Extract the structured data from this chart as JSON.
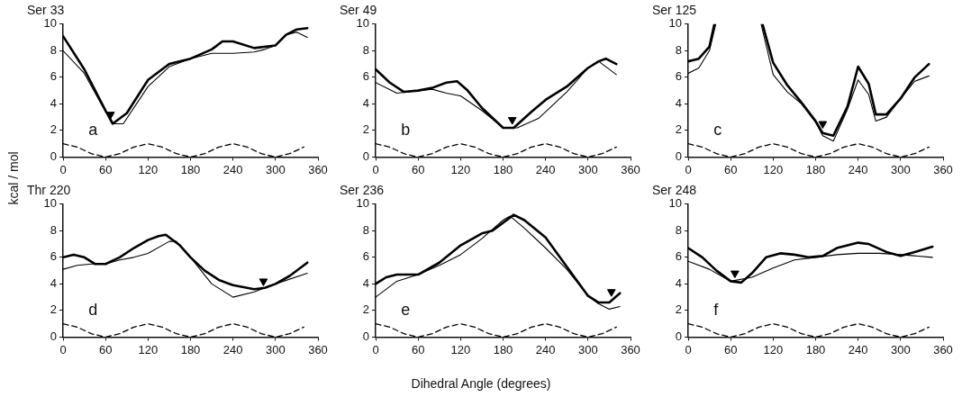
{
  "chart_data": [
    {
      "type": "line",
      "title": "Ser 33",
      "ylabel": "kcal / mol",
      "annotations": [
        "a"
      ],
      "xlim": [
        0,
        360
      ],
      "xticks": [
        0,
        60,
        120,
        180,
        240,
        300,
        360
      ],
      "ylim": [
        0,
        10
      ],
      "yticks": [
        0,
        2,
        4,
        6,
        8,
        10
      ],
      "grid": false,
      "legend": false,
      "marker": "none",
      "series": [
        {
          "color": "#000000",
          "x": [
            0,
            30,
            60,
            70,
            90,
            120,
            150,
            180,
            210,
            225,
            240,
            270,
            300,
            315,
            330,
            345
          ],
          "values": [
            9.1,
            6.6,
            3.5,
            2.5,
            3.3,
            5.8,
            7.0,
            7.4,
            8.1,
            8.7,
            8.7,
            8.2,
            8.4,
            9.2,
            9.6,
            9.7
          ]
        },
        {
          "color": "#000000",
          "x": [
            0,
            30,
            60,
            72,
            85,
            120,
            150,
            180,
            210,
            240,
            270,
            285,
            300,
            315,
            330,
            345
          ],
          "values": [
            8.0,
            6.3,
            3.4,
            2.5,
            2.5,
            5.3,
            6.8,
            7.4,
            7.8,
            7.8,
            7.9,
            8.1,
            8.4,
            9.2,
            9.4,
            9.0
          ]
        },
        {
          "color": "#000000",
          "line_style": "dashed",
          "x": [
            0,
            20,
            40,
            60,
            80,
            100,
            120,
            140,
            160,
            180,
            200,
            220,
            240,
            260,
            280,
            300,
            320,
            340
          ],
          "values": [
            1,
            0.75,
            0.25,
            0,
            0.25,
            0.75,
            1,
            0.75,
            0.25,
            0,
            0.25,
            0.75,
            1,
            0.75,
            0.25,
            0,
            0.25,
            0.75
          ]
        },
        {
          "type": "scatter",
          "marker": "triangle",
          "color": "#000000",
          "x": [
            67
          ],
          "values": [
            3.2
          ]
        }
      ]
    },
    {
      "type": "line",
      "title": "Ser 49",
      "annotations": [
        "b"
      ],
      "xlim": [
        0,
        360
      ],
      "xticks": [
        0,
        60,
        120,
        180,
        240,
        300,
        360
      ],
      "ylim": [
        0,
        10
      ],
      "yticks": [
        0,
        2,
        4,
        6,
        8,
        10
      ],
      "grid": false,
      "legend": false,
      "marker": "none",
      "series": [
        {
          "color": "#000000",
          "x": [
            0,
            20,
            40,
            60,
            80,
            100,
            115,
            130,
            150,
            180,
            195,
            220,
            240,
            270,
            300,
            315,
            325,
            340
          ],
          "values": [
            6.6,
            5.6,
            4.9,
            5.0,
            5.2,
            5.6,
            5.7,
            5.0,
            3.7,
            2.2,
            2.2,
            3.4,
            4.3,
            5.3,
            6.7,
            7.2,
            7.4,
            7.0
          ]
        },
        {
          "color": "#000000",
          "x": [
            0,
            30,
            60,
            80,
            100,
            120,
            150,
            180,
            200,
            230,
            270,
            300,
            315,
            340
          ],
          "values": [
            5.6,
            4.8,
            5.0,
            5.1,
            4.8,
            4.6,
            3.5,
            2.2,
            2.2,
            2.9,
            4.9,
            6.7,
            7.2,
            6.2
          ]
        },
        {
          "color": "#000000",
          "line_style": "dashed",
          "x": [
            0,
            20,
            40,
            60,
            80,
            100,
            120,
            140,
            160,
            180,
            200,
            220,
            240,
            260,
            280,
            300,
            320,
            340
          ],
          "values": [
            1,
            0.75,
            0.25,
            0,
            0.25,
            0.75,
            1,
            0.75,
            0.25,
            0,
            0.25,
            0.75,
            1,
            0.75,
            0.25,
            0,
            0.25,
            0.75
          ]
        },
        {
          "type": "scatter",
          "marker": "triangle",
          "color": "#000000",
          "x": [
            193
          ],
          "values": [
            2.8
          ]
        }
      ]
    },
    {
      "type": "line",
      "title": "Ser 125",
      "annotations": [
        "c"
      ],
      "xlim": [
        0,
        360
      ],
      "xticks": [
        0,
        60,
        120,
        180,
        240,
        300,
        360
      ],
      "ylim": [
        0,
        10
      ],
      "yticks": [
        0,
        2,
        4,
        6,
        8,
        10
      ],
      "grid": false,
      "legend": false,
      "marker": "none",
      "series": [
        {
          "color": "#000000",
          "x": [
            0,
            15,
            30,
            37,
            70,
            105,
            120,
            140,
            160,
            180,
            190,
            205,
            225,
            240,
            255,
            265,
            280,
            300,
            320,
            340
          ],
          "values": [
            7.2,
            7.4,
            8.3,
            10,
            null,
            10,
            7.1,
            5.4,
            4.1,
            2.7,
            1.8,
            1.6,
            3.8,
            6.8,
            5.5,
            3.2,
            3.2,
            4.4,
            6.0,
            7.0
          ]
        },
        {
          "color": "#000000",
          "x": [
            0,
            15,
            30,
            39,
            70,
            103,
            120,
            140,
            160,
            180,
            190,
            205,
            225,
            240,
            255,
            265,
            280,
            300,
            320,
            340
          ],
          "values": [
            6.3,
            6.7,
            8.0,
            10,
            null,
            10,
            6.2,
            4.9,
            4.0,
            2.6,
            1.6,
            1.2,
            3.6,
            5.8,
            4.7,
            2.7,
            3.0,
            4.4,
            5.7,
            6.1
          ]
        },
        {
          "color": "#000000",
          "line_style": "dashed",
          "x": [
            0,
            20,
            40,
            60,
            80,
            100,
            120,
            140,
            160,
            180,
            200,
            220,
            240,
            260,
            280,
            300,
            320,
            340
          ],
          "values": [
            1,
            0.75,
            0.25,
            0,
            0.25,
            0.75,
            1,
            0.75,
            0.25,
            0,
            0.25,
            0.75,
            1,
            0.75,
            0.25,
            0,
            0.25,
            0.75
          ]
        },
        {
          "type": "scatter",
          "marker": "triangle",
          "color": "#000000",
          "x": [
            190
          ],
          "values": [
            2.5
          ]
        }
      ]
    },
    {
      "type": "line",
      "title": "Thr 220",
      "annotations": [
        "d"
      ],
      "xlim": [
        0,
        360
      ],
      "xticks": [
        0,
        60,
        120,
        180,
        240,
        300,
        360
      ],
      "ylim": [
        0,
        10
      ],
      "yticks": [
        0,
        2,
        4,
        6,
        8,
        10
      ],
      "grid": false,
      "legend": false,
      "marker": "none",
      "series": [
        {
          "color": "#000000",
          "x": [
            0,
            15,
            30,
            45,
            60,
            80,
            100,
            120,
            135,
            145,
            165,
            180,
            200,
            220,
            240,
            270,
            285,
            300,
            320,
            345
          ],
          "values": [
            6.0,
            6.2,
            6.0,
            5.5,
            5.5,
            6.0,
            6.7,
            7.3,
            7.6,
            7.7,
            6.9,
            6.0,
            5.0,
            4.3,
            3.9,
            3.6,
            3.7,
            4.0,
            4.6,
            5.6
          ]
        },
        {
          "color": "#000000",
          "x": [
            0,
            20,
            40,
            60,
            80,
            100,
            120,
            150,
            160,
            180,
            210,
            240,
            270,
            300,
            345
          ],
          "values": [
            5.1,
            5.4,
            5.5,
            5.5,
            5.8,
            6.0,
            6.3,
            7.2,
            7.2,
            6.0,
            4.0,
            3.0,
            3.4,
            4.0,
            4.8
          ]
        },
        {
          "color": "#000000",
          "line_style": "dashed",
          "x": [
            0,
            20,
            40,
            60,
            80,
            100,
            120,
            140,
            160,
            180,
            200,
            220,
            240,
            260,
            280,
            300,
            320,
            340
          ],
          "values": [
            1,
            0.75,
            0.25,
            0,
            0.25,
            0.75,
            1,
            0.75,
            0.25,
            0,
            0.25,
            0.75,
            1,
            0.75,
            0.25,
            0,
            0.25,
            0.75
          ]
        },
        {
          "type": "scatter",
          "marker": "triangle",
          "color": "#000000",
          "x": [
            283
          ],
          "values": [
            4.2
          ]
        }
      ]
    },
    {
      "type": "line",
      "title": "Ser 236",
      "xlabel": "Dihedral Angle  (degrees)",
      "annotations": [
        "e"
      ],
      "xlim": [
        0,
        360
      ],
      "xticks": [
        0,
        60,
        120,
        180,
        240,
        300,
        360
      ],
      "ylim": [
        0,
        10
      ],
      "yticks": [
        0,
        2,
        4,
        6,
        8,
        10
      ],
      "grid": false,
      "legend": false,
      "marker": "none",
      "series": [
        {
          "color": "#000000",
          "x": [
            0,
            15,
            30,
            60,
            90,
            120,
            150,
            165,
            180,
            195,
            210,
            240,
            270,
            300,
            315,
            330,
            345
          ],
          "values": [
            4.0,
            4.5,
            4.7,
            4.7,
            5.6,
            6.9,
            7.8,
            8.0,
            8.6,
            9.2,
            8.8,
            7.5,
            5.3,
            3.1,
            2.6,
            2.6,
            3.3
          ]
        },
        {
          "color": "#000000",
          "x": [
            0,
            30,
            60,
            90,
            120,
            150,
            180,
            190,
            210,
            240,
            270,
            300,
            315,
            330,
            345
          ],
          "values": [
            3.0,
            4.2,
            4.7,
            5.4,
            6.2,
            7.4,
            8.8,
            9.1,
            8.2,
            6.7,
            5.1,
            3.1,
            2.5,
            2.1,
            2.3
          ]
        },
        {
          "color": "#000000",
          "line_style": "dashed",
          "x": [
            0,
            20,
            40,
            60,
            80,
            100,
            120,
            140,
            160,
            180,
            200,
            220,
            240,
            260,
            280,
            300,
            320,
            340
          ],
          "values": [
            1,
            0.75,
            0.25,
            0,
            0.25,
            0.75,
            1,
            0.75,
            0.25,
            0,
            0.25,
            0.75,
            1,
            0.75,
            0.25,
            0,
            0.25,
            0.75
          ]
        },
        {
          "type": "scatter",
          "marker": "triangle",
          "color": "#000000",
          "x": [
            333
          ],
          "values": [
            3.4
          ]
        }
      ]
    },
    {
      "type": "line",
      "title": "Ser 248",
      "annotations": [
        "f"
      ],
      "xlim": [
        0,
        360
      ],
      "xticks": [
        0,
        60,
        120,
        180,
        240,
        300,
        360
      ],
      "ylim": [
        0,
        10
      ],
      "yticks": [
        0,
        2,
        4,
        6,
        8,
        10
      ],
      "grid": false,
      "legend": false,
      "marker": "none",
      "series": [
        {
          "color": "#000000",
          "x": [
            0,
            20,
            40,
            60,
            75,
            90,
            110,
            130,
            150,
            170,
            190,
            210,
            240,
            255,
            280,
            300,
            320,
            345
          ],
          "values": [
            6.7,
            6.0,
            5.0,
            4.2,
            4.1,
            4.8,
            6.0,
            6.3,
            6.2,
            6.0,
            6.1,
            6.7,
            7.1,
            7.0,
            6.4,
            6.1,
            6.4,
            6.8
          ]
        },
        {
          "color": "#000000",
          "x": [
            0,
            30,
            60,
            90,
            120,
            150,
            180,
            210,
            240,
            270,
            300,
            345
          ],
          "values": [
            5.7,
            5.1,
            4.2,
            4.5,
            5.2,
            5.8,
            6.0,
            6.2,
            6.3,
            6.3,
            6.2,
            6.0
          ]
        },
        {
          "color": "#000000",
          "line_style": "dashed",
          "x": [
            0,
            20,
            40,
            60,
            80,
            100,
            120,
            140,
            160,
            180,
            200,
            220,
            240,
            260,
            280,
            300,
            320,
            340
          ],
          "values": [
            1,
            0.75,
            0.25,
            0,
            0.25,
            0.75,
            1,
            0.75,
            0.25,
            0,
            0.25,
            0.75,
            1,
            0.75,
            0.25,
            0,
            0.25,
            0.75
          ]
        },
        {
          "type": "scatter",
          "marker": "triangle",
          "color": "#000000",
          "x": [
            66
          ],
          "values": [
            4.8
          ]
        }
      ]
    }
  ]
}
